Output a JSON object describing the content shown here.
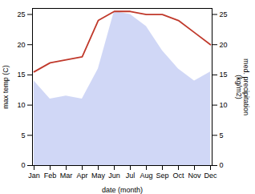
{
  "chart_data": {
    "type": "line",
    "categories": [
      "Jan",
      "Feb",
      "Mar",
      "Apr",
      "May",
      "Jun",
      "Jul",
      "Aug",
      "Sep",
      "Oct",
      "Nov",
      "Dec"
    ],
    "xlabel": "date (month)",
    "ylabel": "max temp (C)",
    "y2label": "med. precipitation\n(kg/m2)",
    "ylim": [
      0,
      26
    ],
    "yticks": [
      0,
      5,
      10,
      15,
      20,
      25
    ],
    "y2lim": [
      0,
      26
    ],
    "y2ticks": [
      0,
      5,
      10,
      15,
      20,
      25
    ],
    "grid": false,
    "series": [
      {
        "type": "area",
        "color": "#c8d0f5",
        "axis": "y2",
        "values": [
          14.0,
          11.0,
          11.5,
          11.0,
          16.0,
          25.5,
          25.0,
          23.0,
          19.0,
          16.0,
          14.0,
          15.5
        ]
      },
      {
        "type": "line",
        "color": "#c0392b",
        "values": [
          15.5,
          17.0,
          17.5,
          18.0,
          24.0,
          25.5,
          25.5,
          25.0,
          25.0,
          24.0,
          22.0,
          20.0
        ]
      }
    ]
  }
}
